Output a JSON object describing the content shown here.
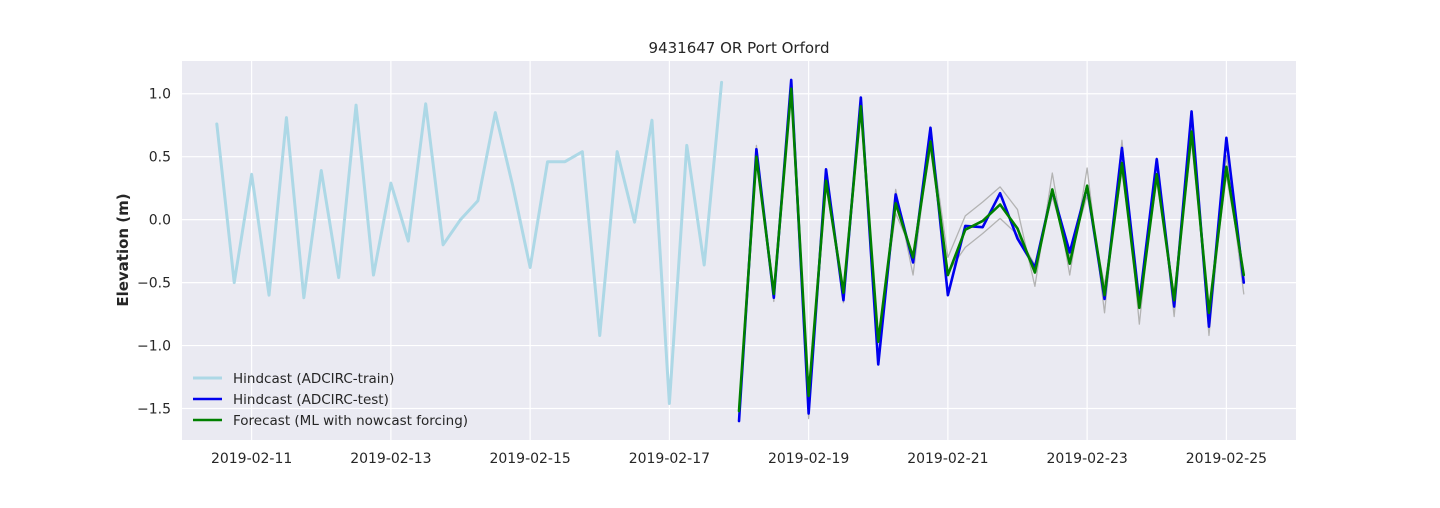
{
  "chart_data": {
    "type": "line",
    "title": "9431647 OR Port Orford",
    "xlabel": "",
    "ylabel": "Elevation (m)",
    "x_type": "date",
    "xlim": [
      "2019-02-10T00:00",
      "2019-02-26T00:00"
    ],
    "ylim": [
      -1.75,
      1.26
    ],
    "x_ticks": [
      "2019-02-11",
      "2019-02-13",
      "2019-02-15",
      "2019-02-17",
      "2019-02-19",
      "2019-02-21",
      "2019-02-23",
      "2019-02-25"
    ],
    "y_ticks": [
      1.0,
      0.5,
      0.0,
      -0.5,
      -1.0,
      -1.5
    ],
    "y_tick_labels": [
      "1.0",
      "0.5",
      "0.0",
      "−0.5",
      "−1.0",
      "−1.5"
    ],
    "grid": true,
    "legend_position": "lower-left",
    "background_color": "#eaeaf2",
    "series": [
      {
        "name": "Hindcast (ADCIRC-train)",
        "color": "#add8e6",
        "width": 3,
        "in_legend": true,
        "points": [
          [
            "2019-02-10T12:00",
            0.76
          ],
          [
            "2019-02-10T18:00",
            -0.5
          ],
          [
            "2019-02-11T00:00",
            0.36
          ],
          [
            "2019-02-11T06:00",
            -0.6
          ],
          [
            "2019-02-11T12:00",
            0.81
          ],
          [
            "2019-02-11T18:00",
            -0.62
          ],
          [
            "2019-02-12T00:00",
            0.39
          ],
          [
            "2019-02-12T06:00",
            -0.46
          ],
          [
            "2019-02-12T12:00",
            0.91
          ],
          [
            "2019-02-12T18:00",
            -0.44
          ],
          [
            "2019-02-13T00:00",
            0.29
          ],
          [
            "2019-02-13T06:00",
            -0.17
          ],
          [
            "2019-02-13T12:00",
            0.92
          ],
          [
            "2019-02-13T18:00",
            -0.2
          ],
          [
            "2019-02-14T00:00",
            0.0
          ],
          [
            "2019-02-14T06:00",
            0.15
          ],
          [
            "2019-02-14T12:00",
            0.85
          ],
          [
            "2019-02-14T18:00",
            0.27
          ],
          [
            "2019-02-15T00:00",
            -0.38
          ],
          [
            "2019-02-15T06:00",
            0.46
          ],
          [
            "2019-02-15T12:00",
            0.46
          ],
          [
            "2019-02-15T18:00",
            0.54
          ],
          [
            "2019-02-16T00:00",
            -0.92
          ],
          [
            "2019-02-16T06:00",
            0.54
          ],
          [
            "2019-02-16T12:00",
            -0.02
          ],
          [
            "2019-02-16T18:00",
            0.79
          ],
          [
            "2019-02-17T00:00",
            -1.46
          ],
          [
            "2019-02-17T06:00",
            0.59
          ],
          [
            "2019-02-17T12:00",
            -0.36
          ],
          [
            "2019-02-17T18:00",
            1.09
          ]
        ]
      },
      {
        "name": "",
        "color": "#b3b3b3",
        "width": 1.3,
        "in_legend": false,
        "points": [
          [
            "2019-02-18T00:00",
            -1.52
          ],
          [
            "2019-02-18T06:00",
            0.59
          ],
          [
            "2019-02-18T12:00",
            -0.65
          ],
          [
            "2019-02-18T18:00",
            1.08
          ],
          [
            "2019-02-19T00:00",
            -1.58
          ],
          [
            "2019-02-19T06:00",
            0.38
          ],
          [
            "2019-02-19T12:00",
            -0.66
          ],
          [
            "2019-02-19T18:00",
            0.97
          ],
          [
            "2019-02-20T00:00",
            -1.12
          ],
          [
            "2019-02-20T06:00",
            0.24
          ],
          [
            "2019-02-20T12:00",
            -0.44
          ],
          [
            "2019-02-20T18:00",
            0.68
          ],
          [
            "2019-02-21T00:00",
            -0.3
          ],
          [
            "2019-02-21T06:00",
            0.03
          ],
          [
            "2019-02-21T12:00",
            0.14
          ],
          [
            "2019-02-21T18:00",
            0.26
          ],
          [
            "2019-02-22T00:00",
            0.08
          ],
          [
            "2019-02-22T06:00",
            -0.53
          ],
          [
            "2019-02-22T12:00",
            0.37
          ],
          [
            "2019-02-22T18:00",
            -0.44
          ],
          [
            "2019-02-23T00:00",
            0.41
          ],
          [
            "2019-02-23T06:00",
            -0.74
          ],
          [
            "2019-02-23T12:00",
            0.63
          ],
          [
            "2019-02-23T18:00",
            -0.83
          ],
          [
            "2019-02-24T00:00",
            0.49
          ],
          [
            "2019-02-24T06:00",
            -0.77
          ],
          [
            "2019-02-24T12:00",
            0.79
          ],
          [
            "2019-02-24T18:00",
            -0.92
          ],
          [
            "2019-02-25T00:00",
            0.51
          ],
          [
            "2019-02-25T06:00",
            -0.59
          ]
        ]
      },
      {
        "name": "",
        "color": "#b3b3b3",
        "width": 1.3,
        "in_legend": false,
        "points": [
          [
            "2019-02-18T00:00",
            -1.56
          ],
          [
            "2019-02-18T06:00",
            0.45
          ],
          [
            "2019-02-18T12:00",
            -0.56
          ],
          [
            "2019-02-18T18:00",
            1.0
          ],
          [
            "2019-02-19T00:00",
            -1.48
          ],
          [
            "2019-02-19T06:00",
            0.26
          ],
          [
            "2019-02-19T12:00",
            -0.55
          ],
          [
            "2019-02-19T18:00",
            0.84
          ],
          [
            "2019-02-20T00:00",
            -0.96
          ],
          [
            "2019-02-20T06:00",
            0.05
          ],
          [
            "2019-02-20T12:00",
            -0.27
          ],
          [
            "2019-02-20T18:00",
            0.56
          ],
          [
            "2019-02-21T00:00",
            -0.42
          ],
          [
            "2019-02-21T06:00",
            -0.22
          ],
          [
            "2019-02-21T12:00",
            -0.11
          ],
          [
            "2019-02-21T18:00",
            0.01
          ],
          [
            "2019-02-22T00:00",
            -0.12
          ],
          [
            "2019-02-22T06:00",
            -0.36
          ],
          [
            "2019-02-22T12:00",
            0.18
          ],
          [
            "2019-02-22T18:00",
            -0.29
          ],
          [
            "2019-02-23T00:00",
            0.19
          ],
          [
            "2019-02-23T06:00",
            -0.52
          ],
          [
            "2019-02-23T12:00",
            0.38
          ],
          [
            "2019-02-23T18:00",
            -0.62
          ],
          [
            "2019-02-24T00:00",
            0.3
          ],
          [
            "2019-02-24T06:00",
            -0.59
          ],
          [
            "2019-02-24T12:00",
            0.62
          ],
          [
            "2019-02-24T18:00",
            -0.72
          ],
          [
            "2019-02-25T00:00",
            0.35
          ],
          [
            "2019-02-25T06:00",
            -0.43
          ]
        ]
      },
      {
        "name": "Hindcast (ADCIRC-test)",
        "color": "#0000ee",
        "width": 2.6,
        "in_legend": true,
        "points": [
          [
            "2019-02-18T00:00",
            -1.6
          ],
          [
            "2019-02-18T06:00",
            0.56
          ],
          [
            "2019-02-18T12:00",
            -0.62
          ],
          [
            "2019-02-18T18:00",
            1.11
          ],
          [
            "2019-02-19T00:00",
            -1.54
          ],
          [
            "2019-02-19T06:00",
            0.4
          ],
          [
            "2019-02-19T12:00",
            -0.64
          ],
          [
            "2019-02-19T18:00",
            0.97
          ],
          [
            "2019-02-20T00:00",
            -1.15
          ],
          [
            "2019-02-20T06:00",
            0.2
          ],
          [
            "2019-02-20T12:00",
            -0.34
          ],
          [
            "2019-02-20T18:00",
            0.73
          ],
          [
            "2019-02-21T00:00",
            -0.6
          ],
          [
            "2019-02-21T06:00",
            -0.05
          ],
          [
            "2019-02-21T12:00",
            -0.06
          ],
          [
            "2019-02-21T18:00",
            0.21
          ],
          [
            "2019-02-22T00:00",
            -0.15
          ],
          [
            "2019-02-22T06:00",
            -0.38
          ],
          [
            "2019-02-22T12:00",
            0.23
          ],
          [
            "2019-02-22T18:00",
            -0.26
          ],
          [
            "2019-02-23T00:00",
            0.26
          ],
          [
            "2019-02-23T06:00",
            -0.63
          ],
          [
            "2019-02-23T12:00",
            0.57
          ],
          [
            "2019-02-23T18:00",
            -0.66
          ],
          [
            "2019-02-24T00:00",
            0.48
          ],
          [
            "2019-02-24T06:00",
            -0.69
          ],
          [
            "2019-02-24T12:00",
            0.86
          ],
          [
            "2019-02-24T18:00",
            -0.85
          ],
          [
            "2019-02-25T00:00",
            0.65
          ],
          [
            "2019-02-25T06:00",
            -0.5
          ]
        ]
      },
      {
        "name": "Forecast (ML with nowcast forcing)",
        "color": "#008000",
        "width": 2.6,
        "in_legend": true,
        "points": [
          [
            "2019-02-18T00:00",
            -1.52
          ],
          [
            "2019-02-18T06:00",
            0.5
          ],
          [
            "2019-02-18T12:00",
            -0.59
          ],
          [
            "2019-02-18T18:00",
            1.04
          ],
          [
            "2019-02-19T00:00",
            -1.4
          ],
          [
            "2019-02-19T06:00",
            0.31
          ],
          [
            "2019-02-19T12:00",
            -0.58
          ],
          [
            "2019-02-19T18:00",
            0.9
          ],
          [
            "2019-02-20T00:00",
            -0.97
          ],
          [
            "2019-02-20T06:00",
            0.13
          ],
          [
            "2019-02-20T12:00",
            -0.3
          ],
          [
            "2019-02-20T18:00",
            0.62
          ],
          [
            "2019-02-21T00:00",
            -0.44
          ],
          [
            "2019-02-21T06:00",
            -0.08
          ],
          [
            "2019-02-21T12:00",
            -0.01
          ],
          [
            "2019-02-21T18:00",
            0.12
          ],
          [
            "2019-02-22T00:00",
            -0.07
          ],
          [
            "2019-02-22T06:00",
            -0.42
          ],
          [
            "2019-02-22T12:00",
            0.24
          ],
          [
            "2019-02-22T18:00",
            -0.35
          ],
          [
            "2019-02-23T00:00",
            0.27
          ],
          [
            "2019-02-23T06:00",
            -0.6
          ],
          [
            "2019-02-23T12:00",
            0.45
          ],
          [
            "2019-02-23T18:00",
            -0.7
          ],
          [
            "2019-02-24T00:00",
            0.36
          ],
          [
            "2019-02-24T06:00",
            -0.64
          ],
          [
            "2019-02-24T12:00",
            0.7
          ],
          [
            "2019-02-24T18:00",
            -0.74
          ],
          [
            "2019-02-25T00:00",
            0.42
          ],
          [
            "2019-02-25T06:00",
            -0.44
          ]
        ]
      }
    ]
  }
}
